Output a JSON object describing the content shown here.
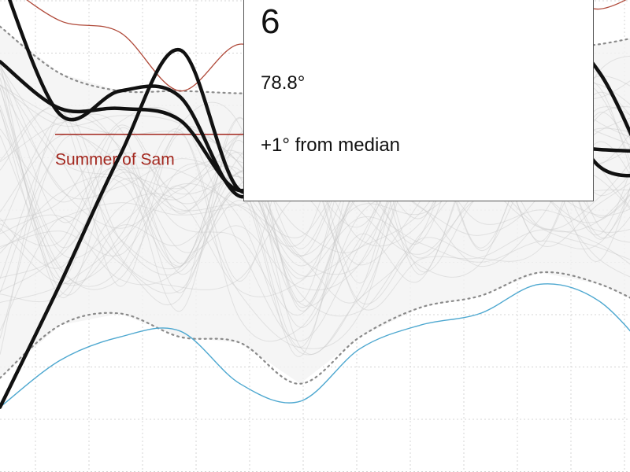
{
  "chart_data": {
    "type": "line",
    "title": "",
    "xlabel": "",
    "ylabel": "",
    "x": [
      1,
      2,
      3,
      4,
      5,
      6,
      7,
      8,
      9,
      10,
      11,
      12
    ],
    "ylim": [
      50,
      95
    ],
    "grid": true,
    "highlighted_series": [
      {
        "values": [
          92.5,
          80.5,
          82.5,
          82.0,
          73.5,
          78.8,
          82.5,
          83.0,
          84.0,
          83.5,
          76.0,
          75.5
        ]
      },
      {
        "values": [
          55.5,
          66.0,
          77.0,
          86.0,
          74.0,
          78.8,
          79.5,
          81.0,
          84.0,
          88.0,
          84.0,
          73.0
        ]
      },
      {
        "values": [
          85.0,
          81.0,
          81.0,
          80.0,
          74.0,
          78.8,
          78.5,
          78.3,
          78.3,
          78.0,
          77.5,
          77.3
        ]
      }
    ],
    "upper_envelope": [
      88.0,
      84.0,
      82.5,
      82.5,
      82.3,
      82.3,
      82.5,
      83.5,
      85.0,
      86.0,
      86.5,
      87.5
    ],
    "lower_envelope": [
      58.0,
      62.5,
      63.5,
      61.5,
      61.0,
      57.5,
      61.5,
      64.0,
      65.0,
      67.0,
      66.0,
      63.5
    ],
    "record_highs": [
      92.0,
      88.5,
      87.5,
      82.5,
      86.5,
      83.5,
      84.5,
      86.5,
      87.5,
      91.0,
      89.5,
      92.0
    ],
    "record_lows": [
      55.5,
      59.5,
      61.5,
      62.0,
      57.5,
      56.0,
      60.5,
      62.5,
      63.5,
      66.0,
      64.5,
      59.0
    ],
    "annotation": {
      "label": "Summer of Sam",
      "value": 78.8
    },
    "tooltip": {
      "day": "6",
      "temperature": "78.8°",
      "difference": "+1° from median"
    },
    "colors": {
      "highlight": "#111111",
      "record_high": "#b04a3a",
      "record_low": "#4ea8d0",
      "annotation": "#a3271e",
      "envelope": "#8a8a8a",
      "background_lines": "#c8c8c8"
    }
  }
}
